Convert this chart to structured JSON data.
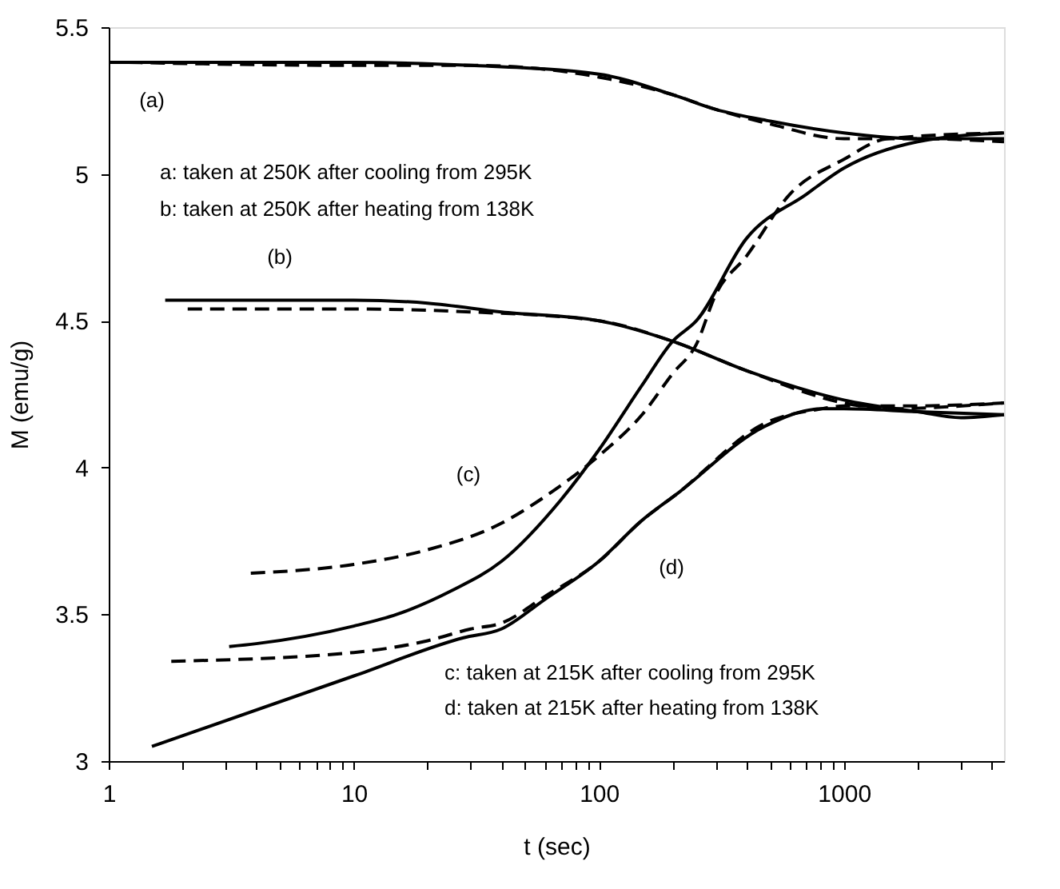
{
  "chart_data": {
    "type": "line",
    "xlabel": "t (sec)",
    "ylabel": "M (emu/g)",
    "log": "x",
    "xlim": [
      1,
      4500
    ],
    "ylim": [
      3,
      5.5
    ],
    "xticks": [
      1,
      {
        "value": 2,
        "label": null
      },
      {
        "value": 3,
        "label": null
      },
      {
        "value": 4,
        "label": null
      },
      {
        "value": 5,
        "label": null
      },
      {
        "value": 6,
        "label": null
      },
      {
        "value": 7,
        "label": null
      },
      {
        "value": 8,
        "label": null
      },
      {
        "value": 9,
        "label": null
      },
      10,
      {
        "value": 20,
        "label": null
      },
      {
        "value": 30,
        "label": null
      },
      {
        "value": 40,
        "label": null
      },
      {
        "value": 50,
        "label": null
      },
      {
        "value": 60,
        "label": null
      },
      {
        "value": 70,
        "label": null
      },
      {
        "value": 80,
        "label": null
      },
      {
        "value": 90,
        "label": null
      },
      100,
      {
        "value": 200,
        "label": null
      },
      {
        "value": 300,
        "label": null
      },
      {
        "value": 400,
        "label": null
      },
      {
        "value": 500,
        "label": null
      },
      {
        "value": 600,
        "label": null
      },
      {
        "value": 700,
        "label": null
      },
      {
        "value": 800,
        "label": null
      },
      {
        "value": 900,
        "label": null
      },
      1000,
      {
        "value": 2000,
        "label": null
      },
      {
        "value": 3000,
        "label": null
      },
      {
        "value": 4000,
        "label": null
      }
    ],
    "yticks": [
      3,
      3.5,
      4,
      4.5,
      5,
      5.5
    ],
    "grid": false,
    "legend": false,
    "marker": "none",
    "series": [
      {
        "color": "#000000",
        "line_style": "solid",
        "x": [
          1,
          10,
          30,
          100,
          200,
          300,
          500,
          1000,
          2000,
          4500
        ],
        "values": [
          5.38,
          5.38,
          5.37,
          5.34,
          5.27,
          5.22,
          5.18,
          5.14,
          5.12,
          5.12
        ]
      },
      {
        "color": "#000000",
        "line_style": "dashed",
        "x": [
          1.2,
          10,
          30,
          100,
          200,
          300,
          500,
          1000,
          2000,
          4500
        ],
        "values": [
          5.38,
          5.37,
          5.37,
          5.33,
          5.27,
          5.22,
          5.17,
          5.12,
          5.12,
          5.11
        ]
      },
      {
        "color": "#000000",
        "line_style": "solid",
        "x": [
          1.7,
          10,
          20,
          40,
          100,
          200,
          400,
          1000,
          2000,
          3000,
          4500
        ],
        "values": [
          4.57,
          4.57,
          4.56,
          4.53,
          4.5,
          4.43,
          4.33,
          4.23,
          4.19,
          4.17,
          4.18
        ]
      },
      {
        "color": "#000000",
        "line_style": "dashed",
        "x": [
          2.1,
          10,
          30,
          100,
          200,
          400,
          1000,
          1500,
          4500
        ],
        "values": [
          4.54,
          4.54,
          4.53,
          4.5,
          4.43,
          4.33,
          4.22,
          4.2,
          4.22
        ]
      },
      {
        "color": "#000000",
        "line_style": "solid",
        "x": [
          3.1,
          4,
          10,
          15,
          25,
          40,
          70,
          100,
          150,
          200,
          250,
          400,
          700,
          1000,
          2000,
          4500
        ],
        "values": [
          3.39,
          3.4,
          3.46,
          3.5,
          3.58,
          3.68,
          3.89,
          4.06,
          4.28,
          4.43,
          4.5,
          4.78,
          4.93,
          5.02,
          5.11,
          5.14
        ]
      },
      {
        "color": "#000000",
        "line_style": "dashed",
        "x": [
          3.8,
          10,
          20,
          40,
          60,
          100,
          150,
          200,
          250,
          300,
          400,
          600,
          1000,
          1500,
          4500
        ],
        "values": [
          3.64,
          3.67,
          3.72,
          3.81,
          3.9,
          4.04,
          4.18,
          4.32,
          4.42,
          4.59,
          4.72,
          4.93,
          5.05,
          5.12,
          5.14
        ]
      },
      {
        "color": "#000000",
        "line_style": "solid",
        "x": [
          1.5,
          10,
          28,
          40,
          60,
          100,
          150,
          208,
          474,
          810,
          1000,
          2000,
          4500
        ],
        "values": [
          3.05,
          3.29,
          3.42,
          3.45,
          3.55,
          3.68,
          3.82,
          3.91,
          4.14,
          4.2,
          4.2,
          4.19,
          4.18
        ]
      },
      {
        "color": "#000000",
        "line_style": "dashed",
        "x": [
          1.8,
          10,
          20,
          30,
          40,
          60,
          100,
          150,
          208,
          474,
          810,
          1000,
          2000,
          4500
        ],
        "values": [
          3.34,
          3.37,
          3.41,
          3.45,
          3.47,
          3.56,
          3.68,
          3.82,
          3.91,
          4.15,
          4.2,
          4.21,
          4.21,
          4.22
        ]
      }
    ],
    "annotations": [
      "(a)",
      "(b)",
      "(c)",
      "(d)",
      "a: taken at 250K after cooling from 295K",
      "b: taken at 250K after heating from 138K",
      "c: taken at 215K after cooling from 295K",
      "d: taken at 215K after heating from 138K"
    ]
  }
}
